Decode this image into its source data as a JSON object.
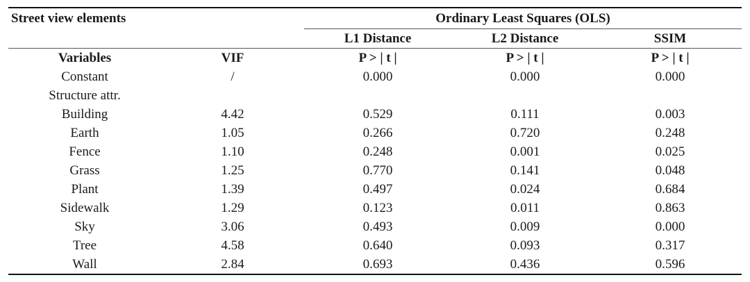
{
  "header": {
    "group_label": "Street view elements",
    "ols_label": "Ordinary Least Squares (OLS)",
    "l1_label": "L1 Distance",
    "l2_label": "L2 Distance",
    "ssim_label": "SSIM",
    "variables_label": "Variables",
    "vif_label": "VIF",
    "p_label": "P > | t |"
  },
  "rows": [
    {
      "name": "Constant",
      "vif": "/",
      "l1": "0.000",
      "l2": "0.000",
      "ssim": "0.000"
    },
    {
      "name": "Structure attr.",
      "vif": "",
      "l1": "",
      "l2": "",
      "ssim": ""
    },
    {
      "name": "Building",
      "vif": "4.42",
      "l1": "0.529",
      "l2": "0.111",
      "ssim": "0.003"
    },
    {
      "name": "Earth",
      "vif": "1.05",
      "l1": "0.266",
      "l2": "0.720",
      "ssim": "0.248"
    },
    {
      "name": "Fence",
      "vif": "1.10",
      "l1": "0.248",
      "l2": "0.001",
      "ssim": "0.025"
    },
    {
      "name": "Grass",
      "vif": "1.25",
      "l1": "0.770",
      "l2": "0.141",
      "ssim": "0.048"
    },
    {
      "name": "Plant",
      "vif": "1.39",
      "l1": "0.497",
      "l2": "0.024",
      "ssim": "0.684"
    },
    {
      "name": "Sidewalk",
      "vif": "1.29",
      "l1": "0.123",
      "l2": "0.011",
      "ssim": "0.863"
    },
    {
      "name": "Sky",
      "vif": "3.06",
      "l1": "0.493",
      "l2": "0.009",
      "ssim": "0.000"
    },
    {
      "name": "Tree",
      "vif": "4.58",
      "l1": "0.640",
      "l2": "0.093",
      "ssim": "0.317"
    },
    {
      "name": "Wall",
      "vif": "2.84",
      "l1": "0.693",
      "l2": "0.436",
      "ssim": "0.596"
    }
  ]
}
